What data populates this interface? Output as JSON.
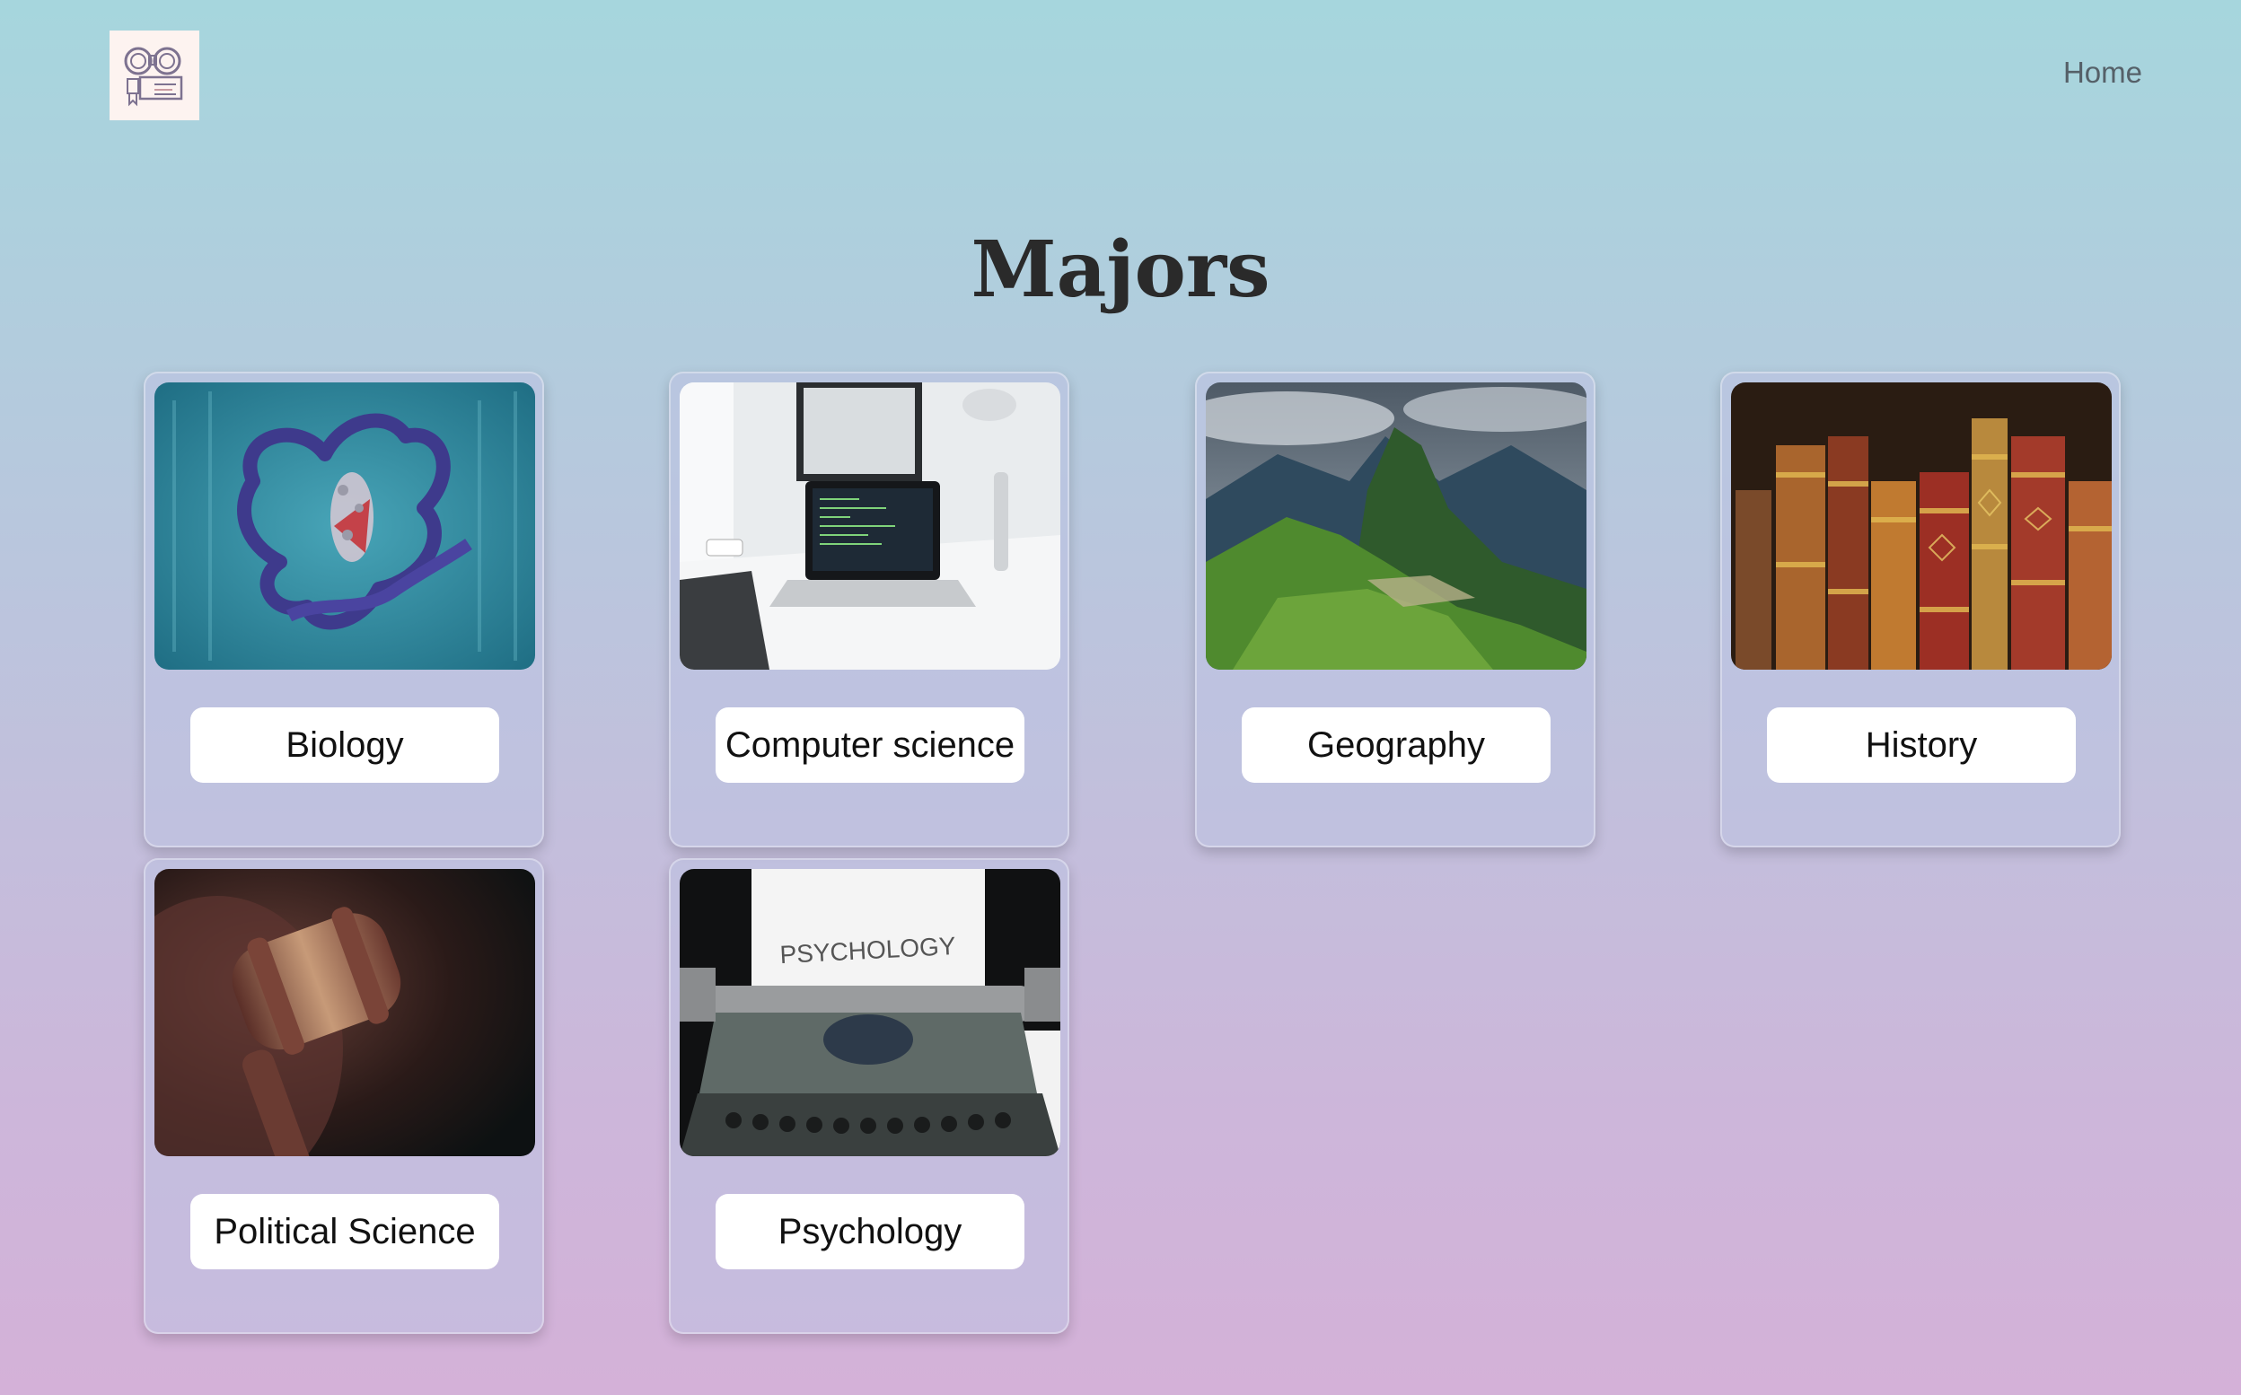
{
  "header": {
    "logo_icon": "binoculars-certificate-logo-icon",
    "nav": {
      "home_label": "Home"
    }
  },
  "page": {
    "title": "Majors"
  },
  "majors": [
    {
      "label": "Biology",
      "image": "protein-structure-image"
    },
    {
      "label": "Computer science",
      "image": "laptop-code-desk-image"
    },
    {
      "label": "Geography",
      "image": "mountain-landscape-image"
    },
    {
      "label": "History",
      "image": "old-books-image"
    },
    {
      "label": "Political Science",
      "image": "gavel-image"
    },
    {
      "label": "Psychology",
      "image": "typewriter-psychology-image"
    }
  ],
  "image_text": {
    "psychology_paper": "PSYCHOLOGY"
  },
  "colors": {
    "accent_text": "#111111",
    "nav_text": "#556068",
    "card_button_bg": "#ffffff"
  }
}
